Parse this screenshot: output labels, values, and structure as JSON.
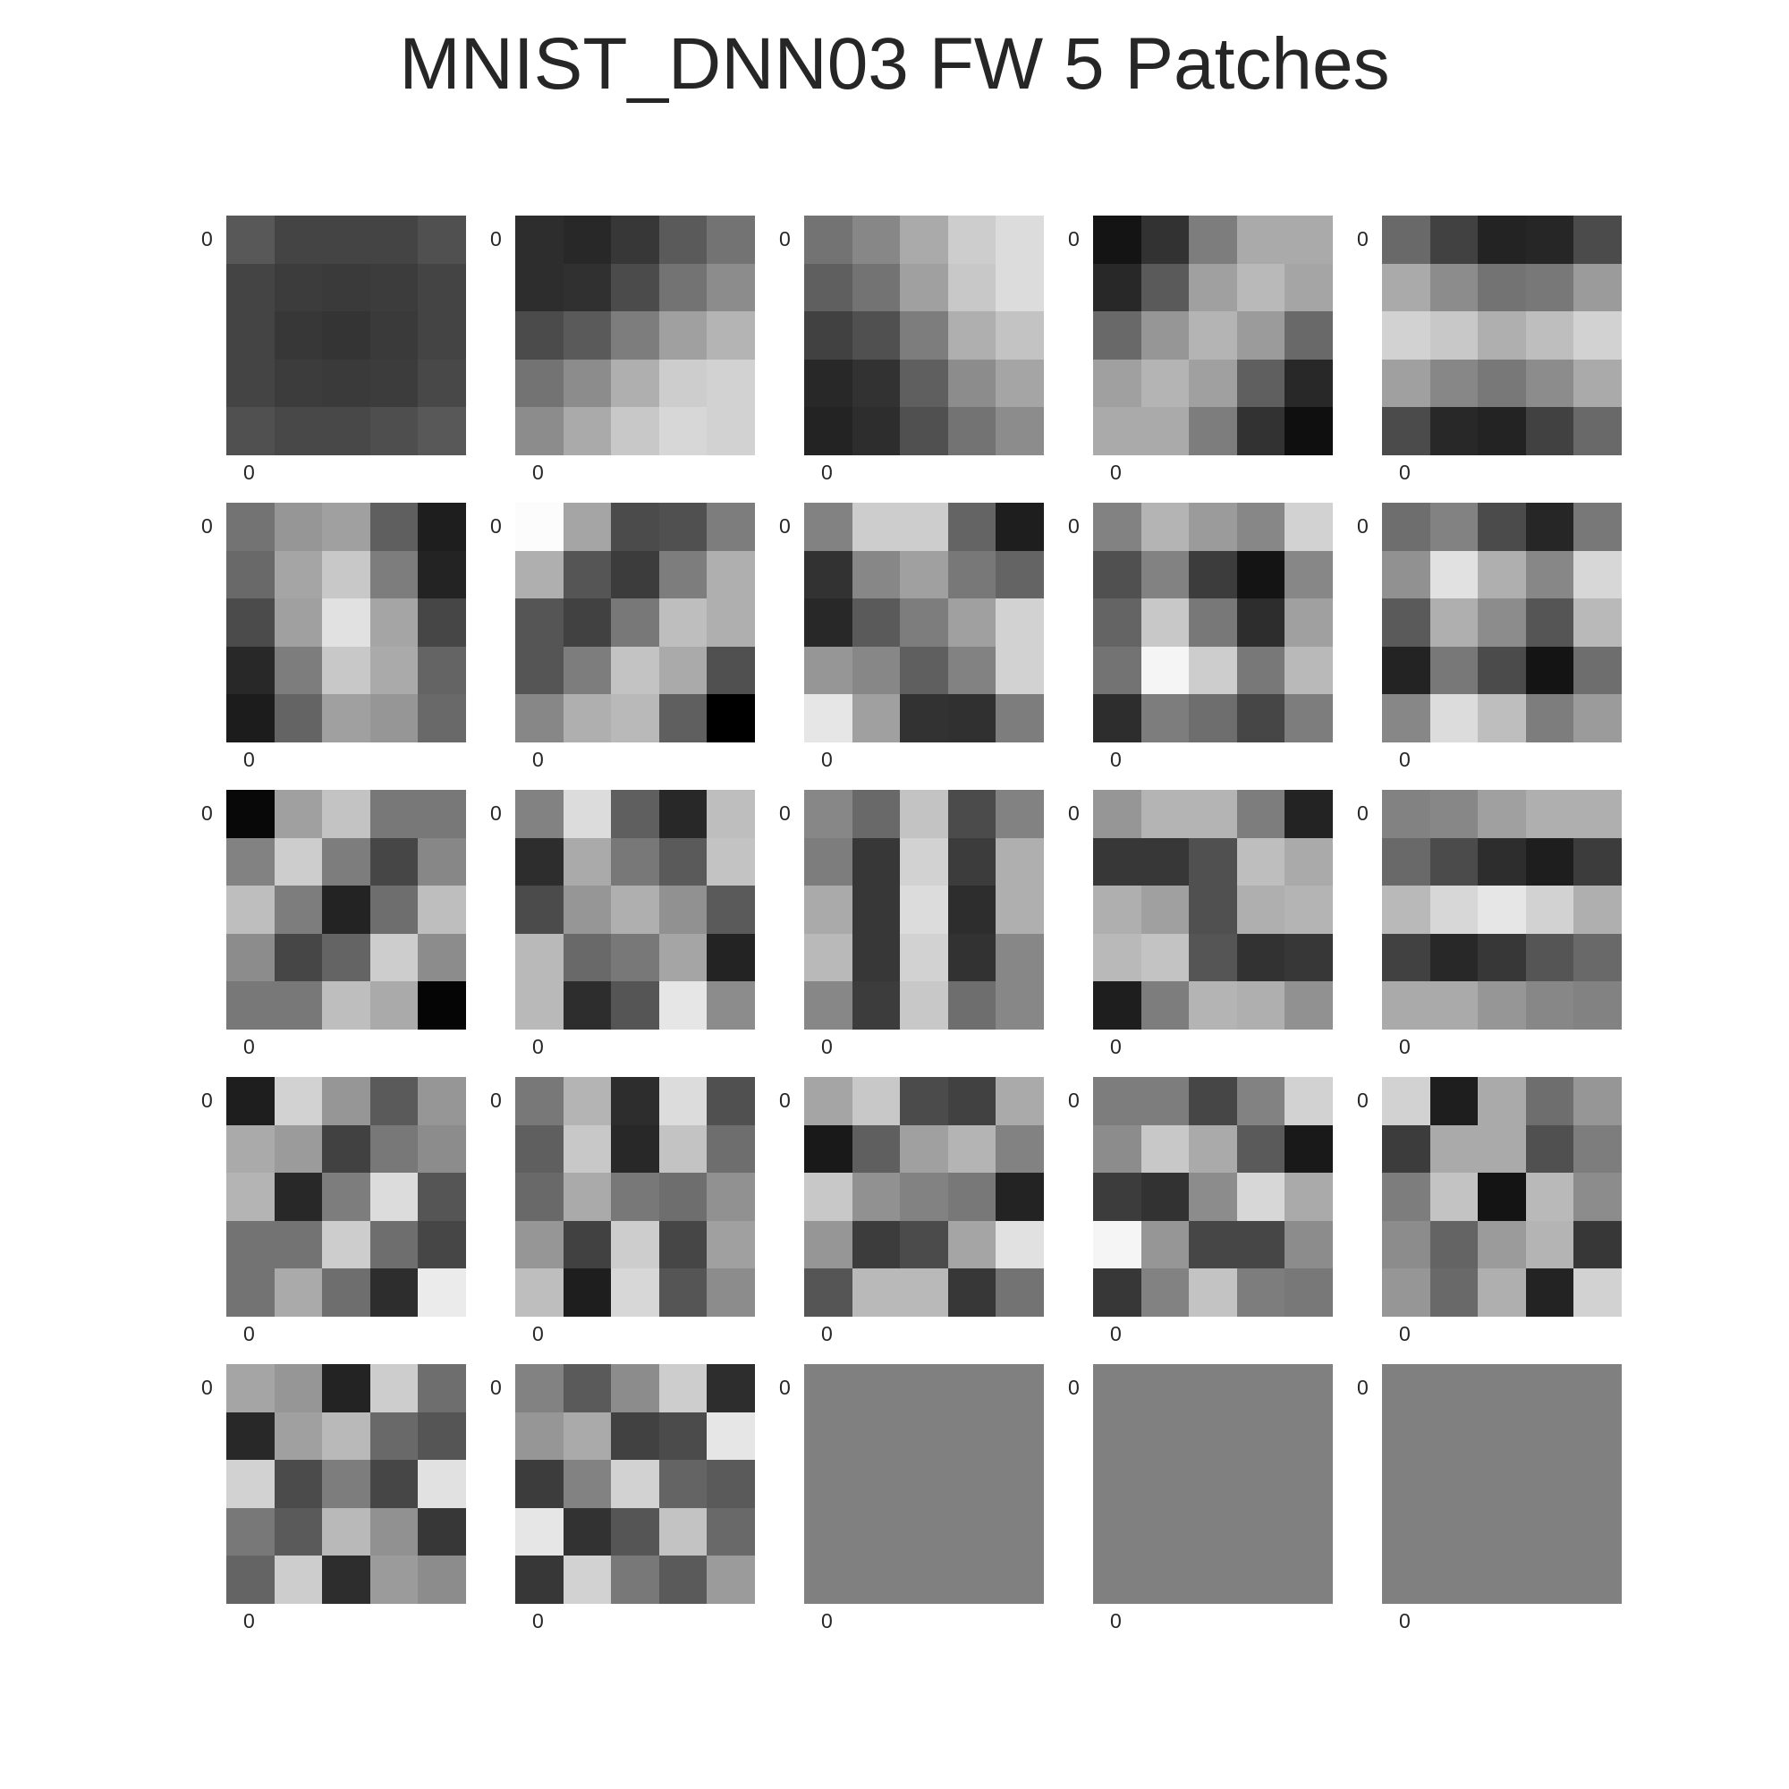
{
  "title": "MNIST_DNN03 FW 5 Patches",
  "chart_data": {
    "type": "heatmap",
    "title": "MNIST_DNN03 FW 5 Patches",
    "colormap": "gray",
    "xtick_label": "0",
    "ytick_label": "0",
    "grid": false,
    "value_range": [
      0,
      255
    ],
    "patches": [
      [
        [
          88,
          68,
          68,
          68,
          80
        ],
        [
          68,
          60,
          58,
          60,
          68
        ],
        [
          68,
          55,
          52,
          58,
          68
        ],
        [
          68,
          60,
          58,
          60,
          72
        ],
        [
          80,
          72,
          72,
          78,
          88
        ]
      ],
      [
        [
          45,
          40,
          55,
          90,
          115
        ],
        [
          45,
          48,
          75,
          115,
          140
        ],
        [
          75,
          90,
          125,
          160,
          180
        ],
        [
          115,
          140,
          175,
          205,
          210
        ],
        [
          140,
          170,
          200,
          215,
          210
        ]
      ],
      [
        [
          115,
          135,
          170,
          205,
          220
        ],
        [
          95,
          115,
          160,
          200,
          220
        ],
        [
          65,
          80,
          125,
          175,
          195
        ],
        [
          40,
          50,
          95,
          140,
          165
        ],
        [
          35,
          45,
          80,
          115,
          140
        ]
      ],
      [
        [
          20,
          50,
          125,
          170,
          170
        ],
        [
          40,
          90,
          160,
          185,
          165
        ],
        [
          105,
          150,
          180,
          155,
          105
        ],
        [
          160,
          180,
          160,
          95,
          40
        ],
        [
          170,
          170,
          125,
          50,
          15
        ]
      ],
      [
        [
          105,
          65,
          35,
          38,
          75
        ],
        [
          170,
          140,
          115,
          120,
          155
        ],
        [
          210,
          200,
          175,
          190,
          210
        ],
        [
          160,
          135,
          120,
          140,
          170
        ],
        [
          75,
          40,
          35,
          65,
          105
        ]
      ],
      [
        [
          115,
          150,
          160,
          95,
          30
        ],
        [
          105,
          165,
          200,
          125,
          35
        ],
        [
          75,
          160,
          225,
          165,
          70
        ],
        [
          40,
          125,
          200,
          170,
          100
        ],
        [
          28,
          100,
          160,
          150,
          105
        ]
      ],
      [
        [
          252,
          165,
          75,
          80,
          125
        ],
        [
          175,
          85,
          60,
          125,
          175
        ],
        [
          85,
          65,
          120,
          190,
          175
        ],
        [
          85,
          125,
          195,
          170,
          80
        ],
        [
          135,
          175,
          185,
          95,
          0
        ]
      ],
      [
        [
          130,
          205,
          205,
          100,
          30
        ],
        [
          50,
          135,
          160,
          120,
          100
        ],
        [
          40,
          90,
          125,
          160,
          210
        ],
        [
          150,
          135,
          95,
          130,
          210
        ],
        [
          230,
          160,
          50,
          48,
          125
        ]
      ],
      [
        [
          130,
          180,
          155,
          135,
          210
        ],
        [
          80,
          130,
          60,
          20,
          135
        ],
        [
          100,
          200,
          120,
          45,
          160
        ],
        [
          115,
          245,
          205,
          120,
          185
        ],
        [
          45,
          125,
          110,
          70,
          125
        ]
      ],
      [
        [
          110,
          130,
          75,
          38,
          120
        ],
        [
          145,
          225,
          175,
          135,
          215
        ],
        [
          90,
          175,
          140,
          85,
          185
        ],
        [
          35,
          120,
          75,
          20,
          110
        ],
        [
          135,
          220,
          190,
          125,
          155
        ]
      ],
      [
        [
          8,
          160,
          195,
          120,
          120
        ],
        [
          130,
          205,
          125,
          70,
          135
        ],
        [
          190,
          125,
          35,
          110,
          190
        ],
        [
          140,
          70,
          100,
          205,
          140
        ],
        [
          120,
          120,
          190,
          170,
          5
        ]
      ],
      [
        [
          130,
          220,
          95,
          40,
          190
        ],
        [
          45,
          170,
          120,
          90,
          195
        ],
        [
          75,
          150,
          175,
          145,
          90
        ],
        [
          185,
          105,
          120,
          165,
          35
        ],
        [
          185,
          45,
          85,
          230,
          140
        ]
      ],
      [
        [
          135,
          105,
          195,
          75,
          130
        ],
        [
          125,
          55,
          210,
          60,
          175
        ],
        [
          170,
          55,
          220,
          45,
          175
        ],
        [
          185,
          55,
          210,
          50,
          135
        ],
        [
          135,
          60,
          200,
          110,
          135
        ]
      ],
      [
        [
          150,
          180,
          180,
          125,
          35
        ],
        [
          55,
          55,
          80,
          190,
          170
        ],
        [
          175,
          160,
          80,
          175,
          180
        ],
        [
          185,
          195,
          85,
          50,
          55
        ],
        [
          30,
          125,
          180,
          175,
          145
        ]
      ],
      [
        [
          130,
          135,
          160,
          175,
          175
        ],
        [
          105,
          75,
          45,
          30,
          60
        ],
        [
          185,
          215,
          230,
          210,
          175
        ],
        [
          65,
          40,
          55,
          85,
          105
        ],
        [
          170,
          170,
          150,
          135,
          130
        ]
      ],
      [
        [
          30,
          210,
          150,
          90,
          150
        ],
        [
          170,
          155,
          65,
          120,
          140
        ],
        [
          180,
          40,
          125,
          220,
          85
        ],
        [
          115,
          115,
          205,
          110,
          70
        ],
        [
          115,
          170,
          110,
          45,
          235
        ]
      ],
      [
        [
          120,
          180,
          45,
          220,
          80
        ],
        [
          95,
          200,
          40,
          195,
          110
        ],
        [
          105,
          170,
          120,
          110,
          145
        ],
        [
          150,
          65,
          205,
          70,
          160
        ],
        [
          190,
          30,
          215,
          85,
          140
        ]
      ],
      [
        [
          165,
          200,
          75,
          65,
          170
        ],
        [
          25,
          95,
          160,
          180,
          130
        ],
        [
          200,
          145,
          130,
          120,
          35
        ],
        [
          150,
          60,
          75,
          165,
          225
        ],
        [
          85,
          185,
          185,
          55,
          115
        ]
      ],
      [
        [
          125,
          125,
          70,
          130,
          210
        ],
        [
          140,
          200,
          170,
          90,
          25
        ],
        [
          60,
          50,
          140,
          215,
          170
        ],
        [
          245,
          150,
          70,
          70,
          140
        ],
        [
          55,
          130,
          195,
          125,
          120
        ]
      ],
      [
        [
          210,
          30,
          170,
          110,
          150
        ],
        [
          60,
          170,
          170,
          80,
          125
        ],
        [
          125,
          195,
          20,
          185,
          140
        ],
        [
          140,
          100,
          155,
          180,
          55
        ],
        [
          150,
          105,
          175,
          35,
          210
        ]
      ],
      [
        [
          165,
          150,
          35,
          205,
          110
        ],
        [
          40,
          160,
          185,
          105,
          85
        ],
        [
          210,
          75,
          125,
          70,
          225
        ],
        [
          120,
          90,
          185,
          145,
          55
        ],
        [
          100,
          205,
          45,
          155,
          140
        ]
      ],
      [
        [
          130,
          90,
          140,
          205,
          45
        ],
        [
          150,
          170,
          65,
          75,
          230
        ],
        [
          60,
          130,
          210,
          100,
          90
        ],
        [
          230,
          50,
          85,
          195,
          105
        ],
        [
          55,
          210,
          120,
          90,
          155
        ]
      ],
      [
        [
          128,
          128,
          128,
          128,
          128
        ],
        [
          128,
          128,
          128,
          128,
          128
        ],
        [
          128,
          128,
          128,
          128,
          128
        ],
        [
          128,
          128,
          128,
          128,
          128
        ],
        [
          128,
          128,
          128,
          128,
          128
        ]
      ],
      [
        [
          128,
          128,
          128,
          128,
          128
        ],
        [
          128,
          128,
          128,
          128,
          128
        ],
        [
          128,
          128,
          128,
          128,
          128
        ],
        [
          128,
          128,
          128,
          128,
          128
        ],
        [
          128,
          128,
          128,
          128,
          128
        ]
      ],
      [
        [
          128,
          128,
          128,
          128,
          128
        ],
        [
          128,
          128,
          128,
          128,
          128
        ],
        [
          128,
          128,
          128,
          128,
          128
        ],
        [
          128,
          128,
          128,
          128,
          128
        ],
        [
          128,
          128,
          128,
          128,
          128
        ]
      ]
    ]
  }
}
